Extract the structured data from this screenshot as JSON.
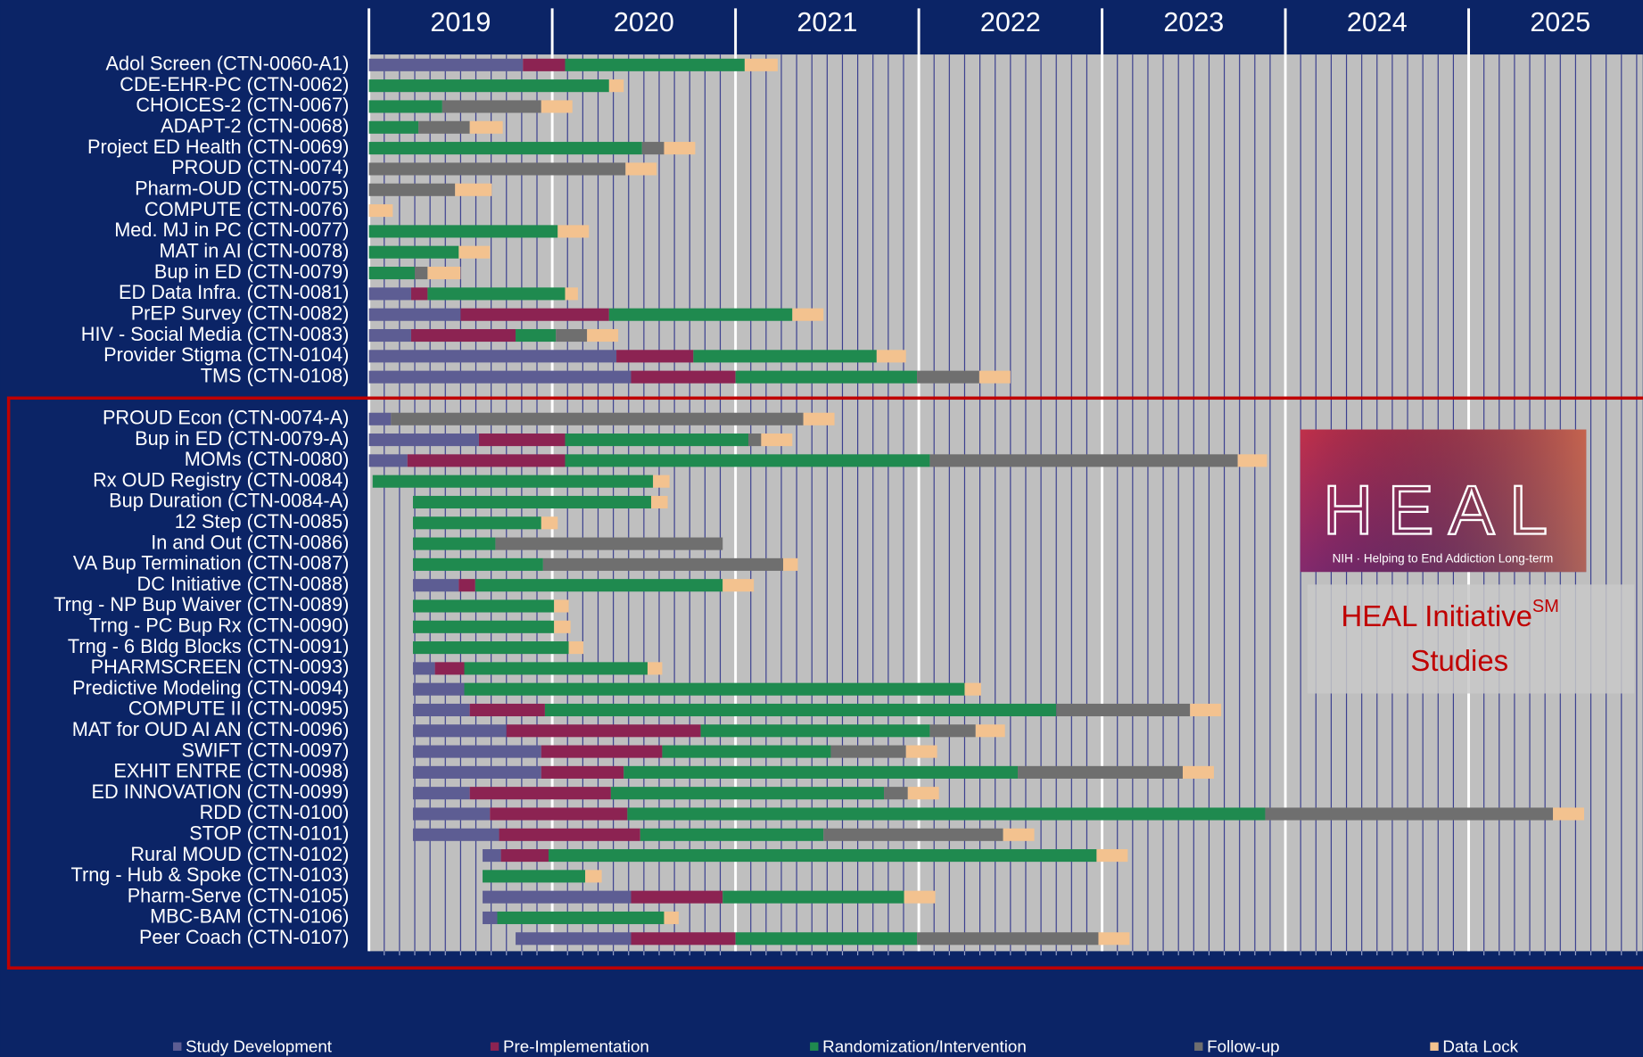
{
  "chart_data": {
    "type": "gantt",
    "categories": [
      "Adol Screen (CTN-0060-A1)",
      "CDE-EHR-PC (CTN-0062)",
      "CHOICES-2 (CTN-0067)",
      "ADAPT-2 (CTN-0068)",
      "Project ED Health (CTN-0069)",
      "PROUD (CTN-0074)",
      "Pharm-OUD (CTN-0075)",
      "COMPUTE (CTN-0076)",
      "Med. MJ in PC (CTN-0077)",
      "MAT in AI (CTN-0078)",
      "Bup in ED (CTN-0079)",
      "ED Data Infra. (CTN-0081)",
      "PrEP Survey (CTN-0082)",
      "HIV - Social Media (CTN-0083)",
      "Provider Stigma (CTN-0104)",
      "TMS (CTN-0108)",
      "PROUD Econ (CTN-0074-A)",
      "Bup in ED (CTN-0079-A)",
      "MOMs (CTN-0080)",
      "Rx OUD Registry (CTN-0084)",
      "Bup Duration (CTN-0084-A)",
      "12 Step (CTN-0085)",
      "In and Out (CTN-0086)",
      "VA Bup Termination (CTN-0087)",
      "DC Initiative (CTN-0088)",
      "Trng - NP Bup Waiver (CTN-0089)",
      "Trng - PC Bup Rx (CTN-0090)",
      "Trng - 6 Bldg Blocks (CTN-0091)",
      "PHARMSCREEN (CTN-0093)",
      "Predictive Modeling (CTN-0094)",
      "COMPUTE II (CTN-0095)",
      "MAT for OUD AI AN (CTN-0096)",
      "SWIFT (CTN-0097)",
      "EXHIT ENTRE (CTN-0098)",
      "ED INNOVATION (CTN-0099)",
      "RDD (CTN-0100)",
      "STOP (CTN-0101)",
      "Rural MOUD (CTN-0102)",
      "Trng - Hub & Spoke (CTN-0103)",
      "Pharm-Serve (CTN-0105)",
      "MBC-BAM (CTN-0106)",
      "Peer Coach (CTN-0107)"
    ],
    "start": [
      2019,
      2019,
      2019,
      2019,
      2019,
      2019,
      2019,
      2019,
      2019,
      2019,
      2019,
      2019,
      2019,
      2019,
      2019,
      2019,
      2019,
      2019,
      2019,
      2019.02,
      2019.24,
      2019.24,
      2019.24,
      2019.24,
      2019.24,
      2019.24,
      2019.24,
      2019.24,
      2019.24,
      2019.24,
      2019.24,
      2019.24,
      2019.24,
      2019.24,
      2019.24,
      2019.24,
      2019.24,
      2019.62,
      2019.62,
      2019.62,
      2019.62,
      2019.8
    ],
    "series": [
      {
        "name": "Study Development",
        "color": "#5d5d93",
        "values": [
          0.84,
          null,
          null,
          null,
          null,
          null,
          null,
          null,
          null,
          null,
          null,
          0.23,
          0.5,
          0.23,
          1.35,
          1.43,
          0.12,
          0.6,
          0.21,
          null,
          null,
          null,
          null,
          null,
          0.25,
          null,
          null,
          null,
          0.12,
          0.28,
          0.31,
          0.51,
          0.7,
          0.7,
          0.31,
          0.42,
          0.47,
          0.1,
          null,
          0.81,
          0.08,
          0.63
        ]
      },
      {
        "name": "Pre-Implementation",
        "color": "#8c2352",
        "values": [
          0.23,
          null,
          null,
          null,
          null,
          null,
          null,
          null,
          null,
          null,
          null,
          0.09,
          0.81,
          0.57,
          0.42,
          0.57,
          null,
          0.47,
          0.86,
          null,
          null,
          null,
          null,
          null,
          0.09,
          null,
          null,
          null,
          0.16,
          null,
          0.41,
          1.06,
          0.66,
          0.45,
          0.77,
          0.75,
          0.77,
          0.26,
          null,
          0.5,
          null,
          0.57
        ]
      },
      {
        "name": "Randomization/Intervention",
        "color": "#1f8a4f",
        "values": [
          0.98,
          1.31,
          0.4,
          0.27,
          1.49,
          null,
          null,
          null,
          1.03,
          0.49,
          0.25,
          0.75,
          1.0,
          0.22,
          1.0,
          0.99,
          null,
          1.0,
          1.99,
          1.53,
          1.3,
          0.7,
          0.45,
          0.71,
          1.35,
          0.77,
          0.77,
          0.85,
          1.0,
          2.73,
          2.79,
          1.25,
          0.92,
          2.15,
          1.49,
          3.48,
          1.0,
          2.99,
          0.56,
          0.99,
          0.91,
          0.99
        ]
      },
      {
        "name": "Follow-up",
        "color": "#6f6f6f",
        "values": [
          null,
          null,
          0.54,
          0.28,
          0.12,
          1.4,
          0.47,
          null,
          null,
          null,
          0.07,
          null,
          null,
          0.17,
          null,
          0.34,
          2.25,
          0.07,
          1.68,
          null,
          null,
          null,
          1.24,
          1.31,
          null,
          null,
          null,
          null,
          null,
          null,
          0.73,
          0.25,
          0.41,
          0.9,
          0.13,
          1.57,
          0.98,
          null,
          null,
          null,
          null,
          0.99
        ]
      },
      {
        "name": "Data Lock",
        "color": "#f3c28f",
        "values": [
          0.18,
          0.08,
          0.17,
          0.18,
          0.17,
          0.17,
          0.2,
          0.13,
          0.17,
          0.17,
          0.18,
          0.07,
          0.17,
          0.17,
          0.16,
          0.17,
          0.17,
          0.17,
          0.16,
          0.09,
          0.09,
          0.09,
          null,
          0.08,
          0.17,
          0.08,
          0.09,
          0.08,
          0.08,
          0.09,
          0.17,
          0.16,
          0.17,
          0.17,
          0.17,
          0.17,
          0.17,
          0.17,
          0.09,
          0.17,
          0.08,
          0.17
        ]
      }
    ],
    "xlim": [
      2019,
      2025.95
    ],
    "xticks": [
      2019,
      2020,
      2021,
      2022,
      2023,
      2024,
      2025
    ],
    "logo_title": "HEAL",
    "logo_tagline": "NIH · Helping to End Addiction Long-term",
    "annotation": [
      "HEAL Initiative",
      "SM",
      "Studies"
    ]
  }
}
